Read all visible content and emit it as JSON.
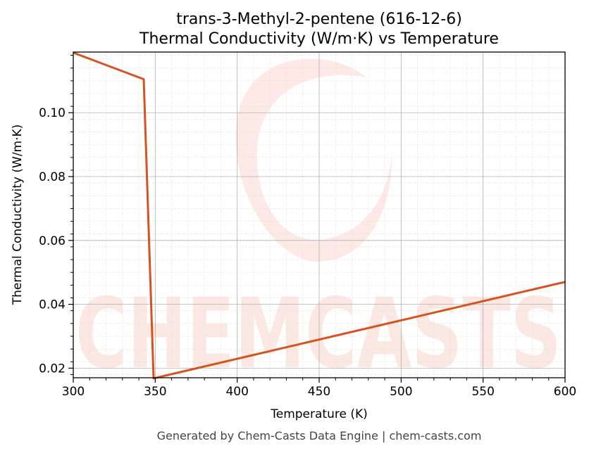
{
  "chart_data": {
    "type": "line",
    "title": "trans-3-Methyl-2-pentene (616-12-6)",
    "subtitle": "Thermal Conductivity (W/m·K) vs Temperature",
    "xlabel": "Temperature (K)",
    "ylabel": "Thermal Conductivity (W/m·K)",
    "xlim": [
      300,
      600
    ],
    "ylim": [
      0.017,
      0.119
    ],
    "x_ticks": [
      300,
      350,
      400,
      450,
      500,
      550,
      600
    ],
    "x_tick_labels": [
      "300",
      "350",
      "400",
      "450",
      "500",
      "550",
      "600"
    ],
    "y_ticks": [
      0.02,
      0.04,
      0.06,
      0.08,
      0.1
    ],
    "y_tick_labels": [
      "0.02",
      "0.04",
      "0.06",
      "0.08",
      "0.10"
    ],
    "grid": true,
    "series": [
      {
        "color": "#d6531f",
        "x": [
          300,
          343,
          349,
          600
        ],
        "y": [
          0.1188,
          0.1105,
          0.0168,
          0.047
        ]
      }
    ]
  },
  "watermark": {
    "text": "CHEMCASTS",
    "color": "#fbd9d2"
  },
  "footer": "Generated by Chem-Casts Data Engine | chem-casts.com"
}
